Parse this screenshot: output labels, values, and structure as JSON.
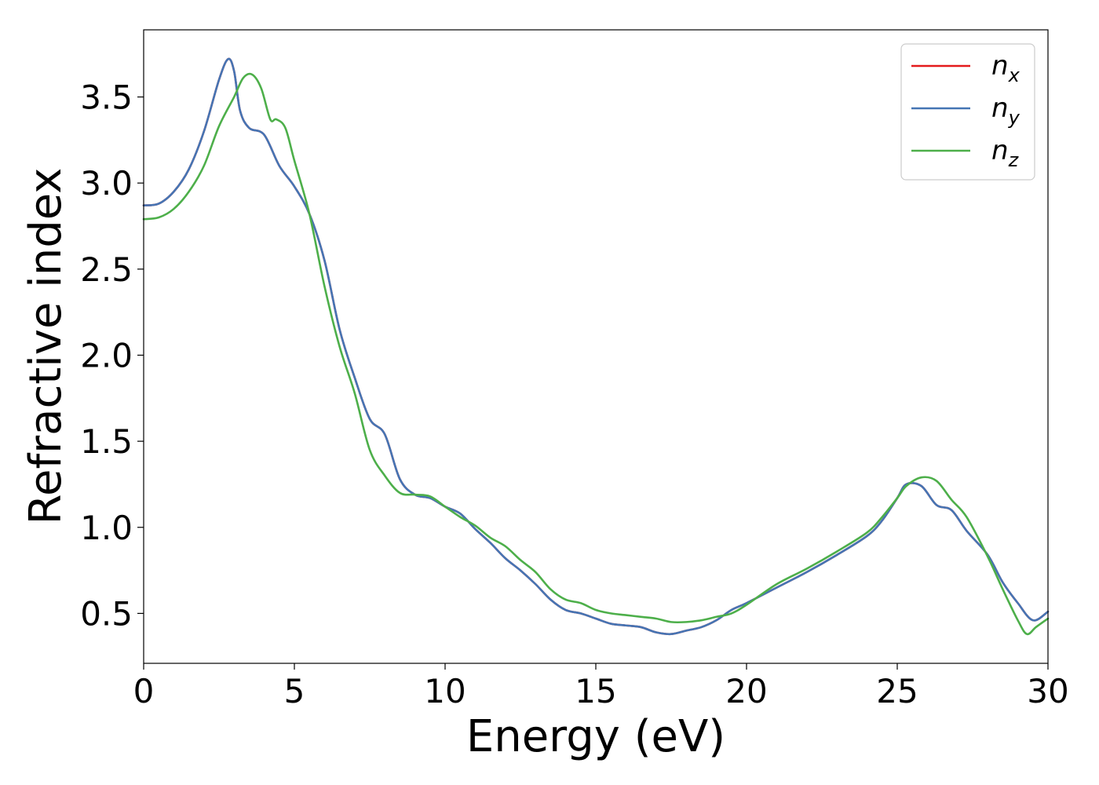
{
  "chart_data": {
    "type": "line",
    "title": "",
    "xlabel": "Energy (eV)",
    "ylabel": "Refractive index",
    "xlim": [
      0,
      30
    ],
    "ylim": [
      0.21,
      3.89
    ],
    "xticks": [
      0,
      5,
      10,
      15,
      20,
      25,
      30
    ],
    "yticks": [
      0.5,
      1.0,
      1.5,
      2.0,
      2.5,
      3.0,
      3.5
    ],
    "grid": false,
    "legend_position": "top-right",
    "series": [
      {
        "name": "n",
        "subscript": "x",
        "color": "#e41a1c",
        "x": [
          0,
          0.5,
          1,
          1.5,
          2,
          2.5,
          2.8,
          3,
          3.2,
          3.5,
          4,
          4.5,
          5,
          5.5,
          6,
          6.5,
          7,
          7.5,
          8,
          8.5,
          9,
          9.5,
          10,
          10.5,
          11,
          11.5,
          12,
          12.5,
          13,
          13.5,
          14,
          14.5,
          15,
          15.5,
          16,
          16.5,
          17,
          17.5,
          18,
          18.5,
          19,
          19.5,
          20,
          21,
          22,
          23,
          24,
          24.5,
          25,
          25.3,
          25.8,
          26.3,
          26.8,
          27.3,
          28,
          28.5,
          29,
          29.5,
          30
        ],
        "y": [
          2.87,
          2.88,
          2.95,
          3.08,
          3.3,
          3.6,
          3.72,
          3.65,
          3.42,
          3.32,
          3.28,
          3.1,
          2.98,
          2.82,
          2.55,
          2.15,
          1.87,
          1.63,
          1.54,
          1.28,
          1.19,
          1.17,
          1.12,
          1.08,
          0.99,
          0.91,
          0.82,
          0.75,
          0.67,
          0.58,
          0.52,
          0.5,
          0.47,
          0.44,
          0.43,
          0.42,
          0.39,
          0.38,
          0.4,
          0.42,
          0.46,
          0.52,
          0.56,
          0.65,
          0.74,
          0.84,
          0.95,
          1.04,
          1.17,
          1.25,
          1.24,
          1.13,
          1.1,
          0.98,
          0.84,
          0.68,
          0.56,
          0.46,
          0.51
        ]
      },
      {
        "name": "n",
        "subscript": "y",
        "color": "#4575b4",
        "x": [
          0,
          0.5,
          1,
          1.5,
          2,
          2.5,
          2.8,
          3,
          3.2,
          3.5,
          4,
          4.5,
          5,
          5.5,
          6,
          6.5,
          7,
          7.5,
          8,
          8.5,
          9,
          9.5,
          10,
          10.5,
          11,
          11.5,
          12,
          12.5,
          13,
          13.5,
          14,
          14.5,
          15,
          15.5,
          16,
          16.5,
          17,
          17.5,
          18,
          18.5,
          19,
          19.5,
          20,
          21,
          22,
          23,
          24,
          24.5,
          25,
          25.3,
          25.8,
          26.3,
          26.8,
          27.3,
          28,
          28.5,
          29,
          29.5,
          30
        ],
        "y": [
          2.87,
          2.88,
          2.95,
          3.08,
          3.3,
          3.6,
          3.72,
          3.65,
          3.42,
          3.32,
          3.28,
          3.1,
          2.98,
          2.82,
          2.55,
          2.15,
          1.87,
          1.63,
          1.54,
          1.28,
          1.19,
          1.17,
          1.12,
          1.08,
          0.99,
          0.91,
          0.82,
          0.75,
          0.67,
          0.58,
          0.52,
          0.5,
          0.47,
          0.44,
          0.43,
          0.42,
          0.39,
          0.38,
          0.4,
          0.42,
          0.46,
          0.52,
          0.56,
          0.65,
          0.74,
          0.84,
          0.95,
          1.04,
          1.17,
          1.25,
          1.24,
          1.13,
          1.1,
          0.98,
          0.84,
          0.68,
          0.56,
          0.46,
          0.51
        ]
      },
      {
        "name": "n",
        "subscript": "z",
        "color": "#4daf4a",
        "x": [
          0,
          0.5,
          1,
          1.5,
          2,
          2.5,
          3,
          3.3,
          3.6,
          3.9,
          4.2,
          4.4,
          4.7,
          5,
          5.5,
          6,
          6.5,
          7,
          7.5,
          8,
          8.5,
          9,
          9.5,
          10,
          10.5,
          11,
          11.5,
          12,
          12.5,
          13,
          13.5,
          14,
          14.5,
          15,
          15.5,
          16,
          16.5,
          17,
          17.5,
          18,
          18.5,
          19,
          19.5,
          20,
          21,
          22,
          23,
          24,
          24.5,
          25,
          25.3,
          25.8,
          26.3,
          26.8,
          27.3,
          28,
          28.5,
          29,
          29.3,
          29.6,
          30
        ],
        "y": [
          2.79,
          2.8,
          2.85,
          2.95,
          3.1,
          3.33,
          3.5,
          3.61,
          3.63,
          3.55,
          3.37,
          3.37,
          3.32,
          3.13,
          2.82,
          2.4,
          2.05,
          1.78,
          1.45,
          1.3,
          1.2,
          1.19,
          1.18,
          1.12,
          1.06,
          1.01,
          0.94,
          0.89,
          0.81,
          0.74,
          0.64,
          0.58,
          0.56,
          0.52,
          0.5,
          0.49,
          0.48,
          0.47,
          0.45,
          0.45,
          0.46,
          0.48,
          0.5,
          0.55,
          0.67,
          0.76,
          0.86,
          0.97,
          1.06,
          1.17,
          1.24,
          1.29,
          1.27,
          1.16,
          1.06,
          0.83,
          0.64,
          0.46,
          0.38,
          0.42,
          0.47
        ]
      }
    ]
  }
}
